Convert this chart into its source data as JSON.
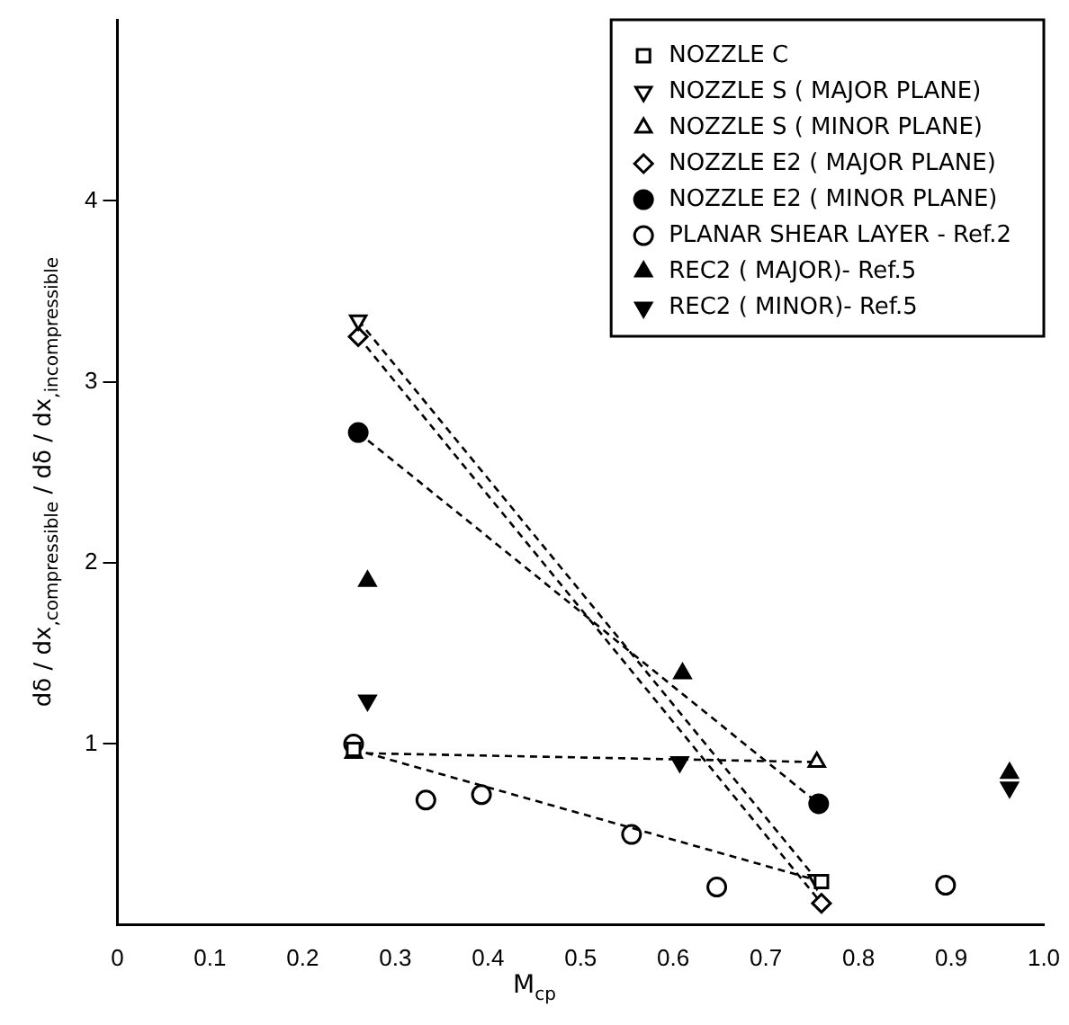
{
  "chart_data": {
    "type": "scatter",
    "xlabel": "M$_{cp}$",
    "ylabel": "dδ / dx$_{,compressible}$ / dδ / dx$_{,incompressible}$",
    "xlim": [
      0,
      1
    ],
    "ylim": [
      0,
      5
    ],
    "xticks": [
      0,
      0.1,
      0.2,
      0.3,
      0.4,
      0.5,
      0.6,
      0.7,
      0.8,
      0.9,
      {
        "value": 1,
        "label": "1.0"
      }
    ],
    "yticks": [
      1,
      2,
      3,
      4
    ],
    "legend": "top right",
    "series": [
      {
        "name": "NOZZLE C",
        "type": "line",
        "color": "#000000",
        "marker": "square-open",
        "line_style": "dashed",
        "x": [
          0.255,
          0.76
        ],
        "values": [
          0.97,
          0.24
        ]
      },
      {
        "name": "NOZZLE S ( MAJOR PLANE)",
        "type": "line",
        "color": "#000000",
        "marker": "triangle-down-open",
        "line_style": "dashed",
        "x": [
          0.26,
          0.755
        ],
        "values": [
          3.34,
          0.25
        ]
      },
      {
        "name": "NOZZLE S ( MINOR PLANE)",
        "type": "line",
        "color": "#000000",
        "marker": "triangle-open",
        "line_style": "dashed",
        "x": [
          0.255,
          0.755
        ],
        "values": [
          0.95,
          0.9
        ]
      },
      {
        "name": "NOZZLE E2 ( MAJOR PLANE)",
        "type": "line",
        "color": "#000000",
        "marker": "diamond-open",
        "line_style": "dashed",
        "x": [
          0.26,
          0.76
        ],
        "values": [
          3.25,
          0.12
        ]
      },
      {
        "name": "NOZZLE E2 ( MINOR PLANE)",
        "type": "line",
        "color": "#000000",
        "marker": "circle",
        "line_style": "dashed",
        "x": [
          0.26,
          0.757
        ],
        "values": [
          2.72,
          0.67
        ]
      },
      {
        "name": "PLANAR SHEAR LAYER - Ref.2",
        "color": "#000000",
        "marker": "circle-open",
        "x": [
          0.255,
          0.333,
          0.393,
          0.555,
          0.647,
          0.894
        ],
        "values": [
          1.0,
          0.69,
          0.72,
          0.5,
          0.21,
          0.22
        ]
      },
      {
        "name": "REC2 ( MAJOR)- Ref.5",
        "color": "#000000",
        "marker": "triangle",
        "x": [
          0.27,
          0.61,
          0.963
        ],
        "values": [
          1.9,
          1.39,
          0.84
        ]
      },
      {
        "name": "REC2 ( MINOR)- Ref.5",
        "color": "#000000",
        "marker": "triangle-down",
        "x": [
          0.27,
          0.607,
          0.963
        ],
        "values": [
          1.24,
          0.9,
          0.76
        ]
      }
    ]
  }
}
